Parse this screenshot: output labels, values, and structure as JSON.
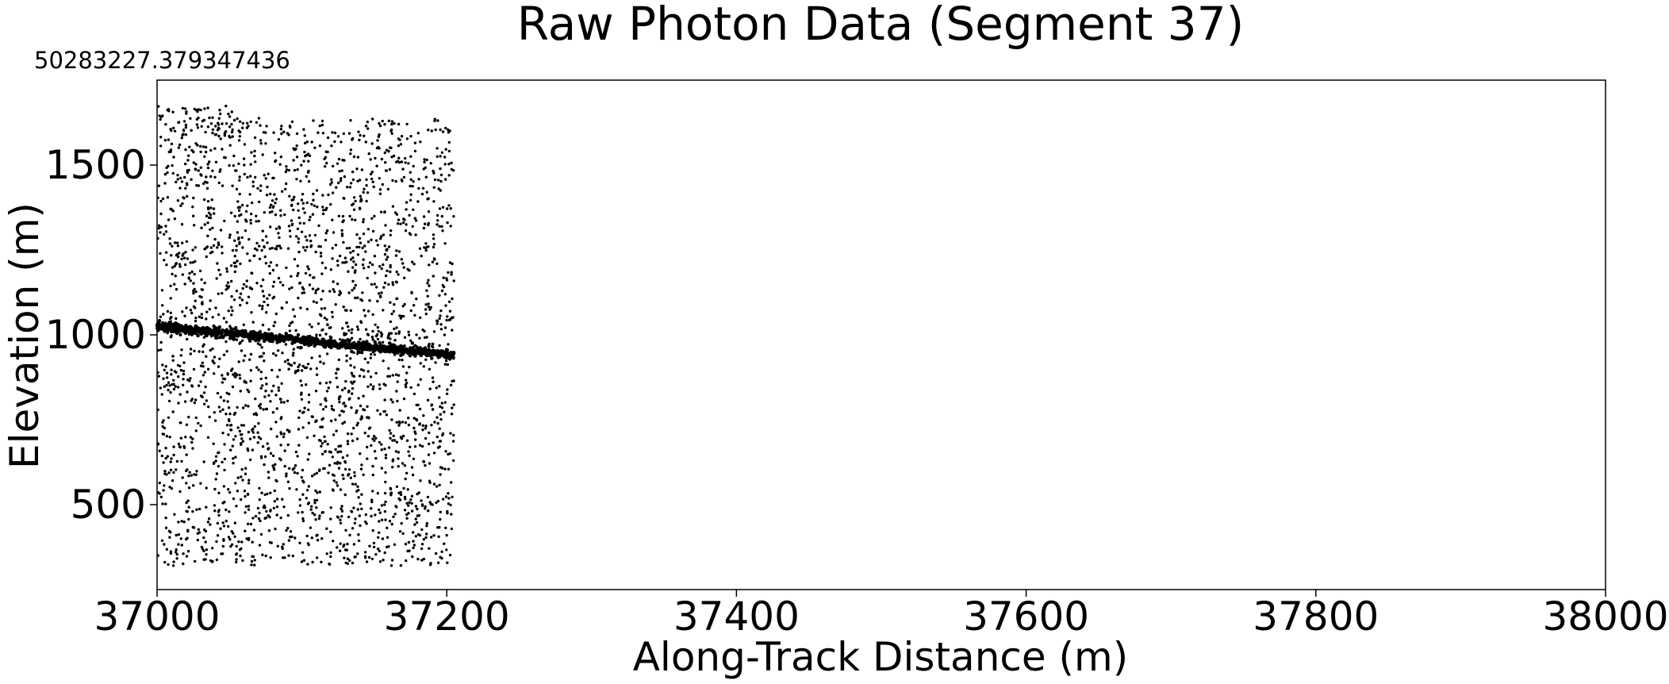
{
  "chart_data": {
    "type": "scatter",
    "title": "Raw Photon Data (Segment 37)",
    "xlabel": "Along-Track Distance (m)",
    "ylabel": "Elevation (m)",
    "x_offset_text": "50283227.379347436",
    "xlim": [
      37000,
      38000
    ],
    "ylim": [
      250,
      1750
    ],
    "xticks": [
      37000,
      37200,
      37400,
      37600,
      37800,
      38000
    ],
    "xtick_labels": [
      "37000",
      "37200",
      "37400",
      "37600",
      "37800",
      "38000"
    ],
    "yticks": [
      500,
      1000,
      1500
    ],
    "ytick_labels": [
      "500",
      "1000",
      "1500"
    ],
    "grid": false,
    "legend": "none",
    "marker_color": "#000000",
    "series": [
      {
        "role": "background-noise",
        "x_range": [
          37000,
          37205
        ],
        "y_range": [
          320,
          1640
        ],
        "approx_count": 2600
      },
      {
        "role": "surface-signal",
        "line": [
          [
            37000,
            1025
          ],
          [
            37205,
            940
          ]
        ],
        "approx_count": 1200,
        "spread_m": 6
      },
      {
        "role": "near-top-cluster",
        "x_range": [
          37000,
          37055
        ],
        "y_range": [
          1600,
          1680
        ],
        "approx_count": 40
      }
    ]
  }
}
